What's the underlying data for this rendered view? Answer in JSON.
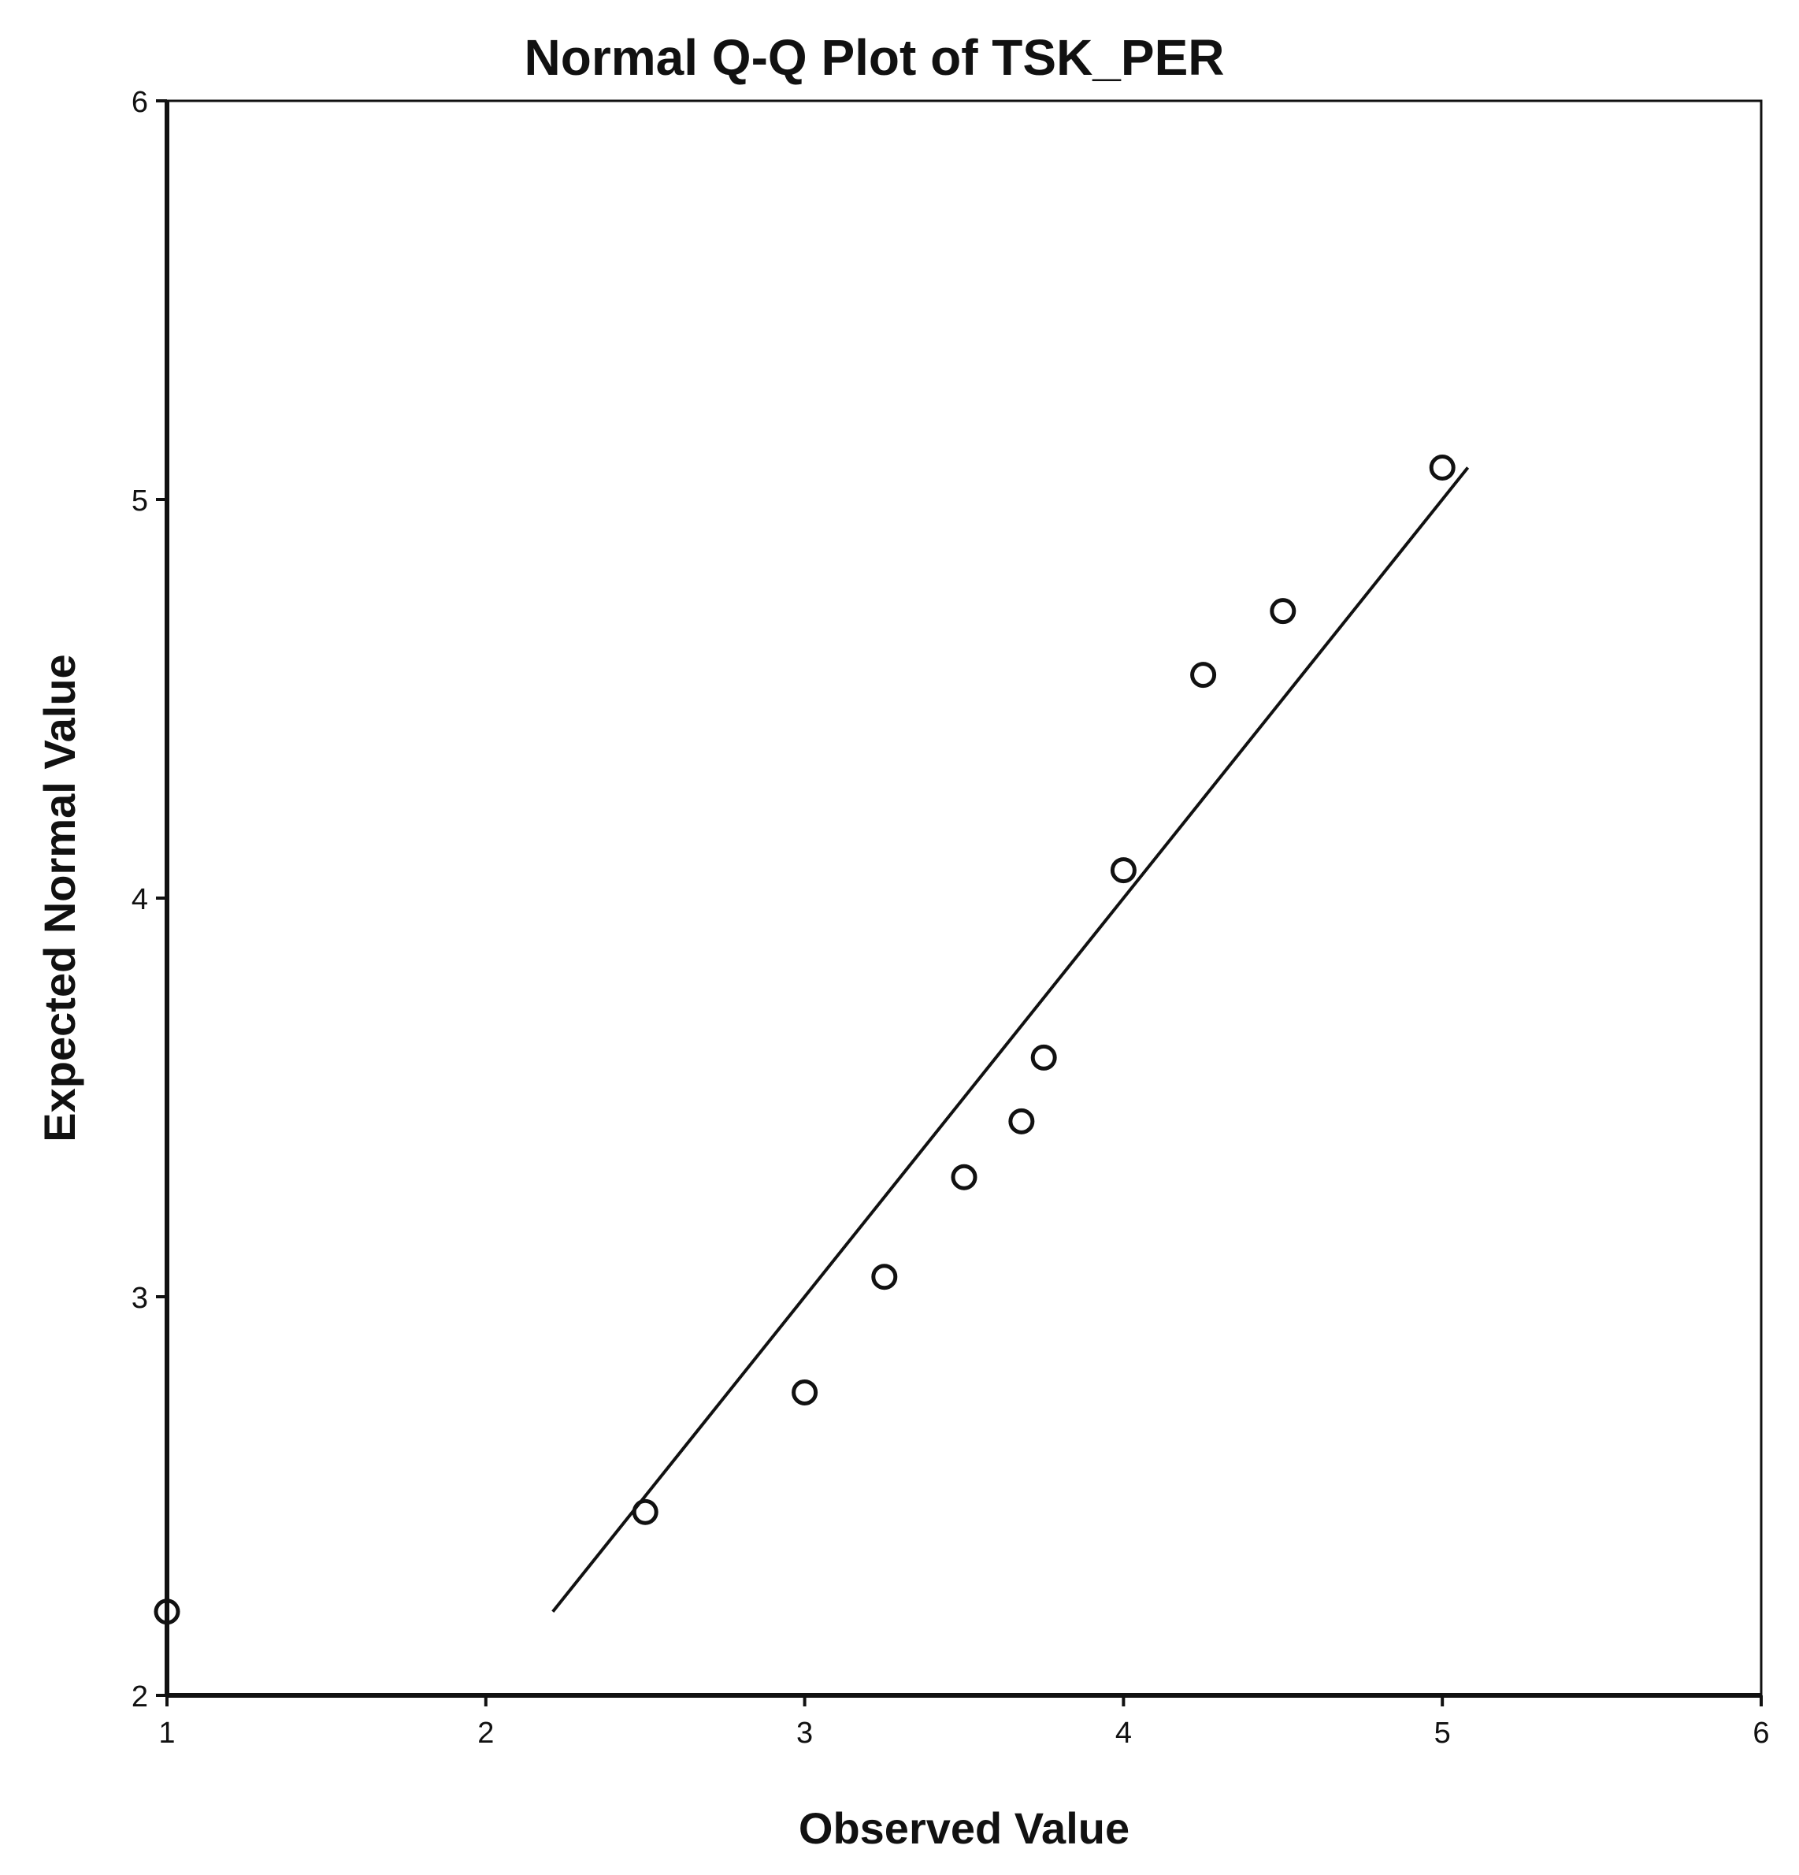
{
  "chart_data": {
    "type": "scatter",
    "title": "Normal Q-Q Plot of TSK_PER",
    "xlabel": "Observed Value",
    "ylabel": "Expected Normal Value",
    "xlim": [
      1,
      6
    ],
    "ylim": [
      2,
      6
    ],
    "x_ticks": [
      "1",
      "2",
      "3",
      "4",
      "5",
      "6"
    ],
    "y_ticks": [
      "2",
      "3",
      "4",
      "5",
      "6"
    ],
    "grid": false,
    "points": [
      {
        "x": 1.0,
        "y": 2.21
      },
      {
        "x": 2.5,
        "y": 2.46
      },
      {
        "x": 3.0,
        "y": 2.76
      },
      {
        "x": 3.25,
        "y": 3.05
      },
      {
        "x": 3.5,
        "y": 3.3
      },
      {
        "x": 3.68,
        "y": 3.44
      },
      {
        "x": 3.75,
        "y": 3.6
      },
      {
        "x": 4.0,
        "y": 4.07
      },
      {
        "x": 4.25,
        "y": 4.56
      },
      {
        "x": 4.5,
        "y": 4.72
      },
      {
        "x": 5.0,
        "y": 5.08
      }
    ],
    "reference_line": {
      "x": [
        2.21,
        5.08
      ],
      "y": [
        2.21,
        5.08
      ]
    }
  }
}
